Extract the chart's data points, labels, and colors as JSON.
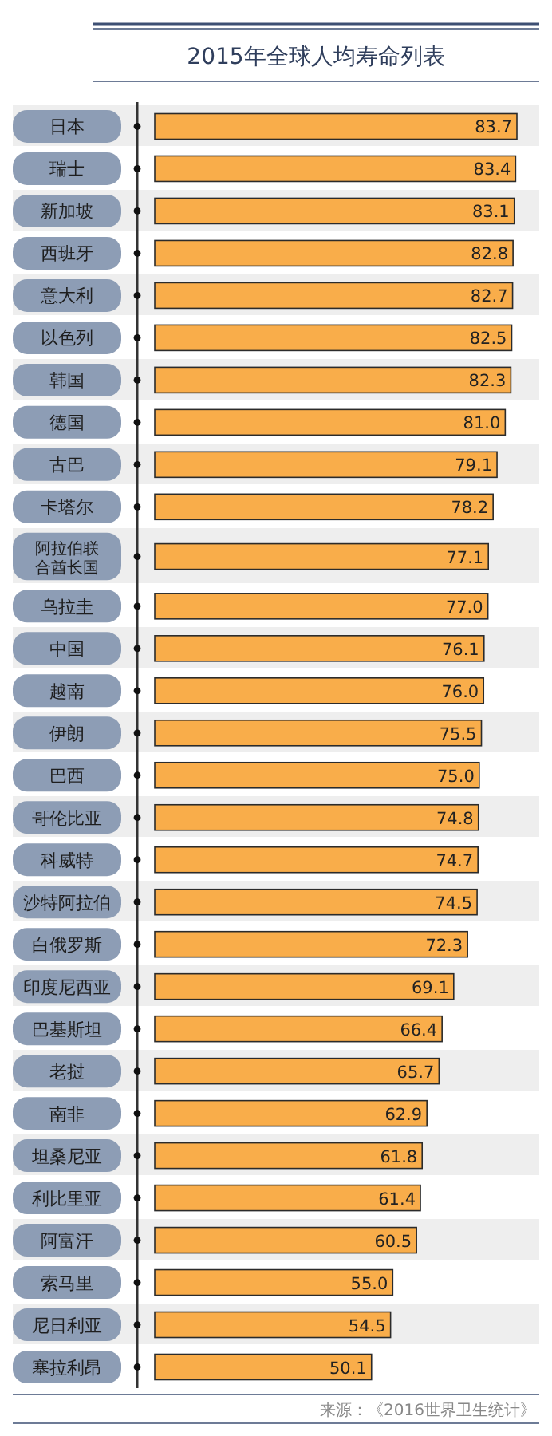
{
  "chart_data": {
    "type": "bar",
    "orientation": "horizontal",
    "title": "2015年全球人均寿命列表",
    "color": "#f9ad4a",
    "categories": [
      "日本",
      "瑞士",
      "新加坡",
      "西班牙",
      "意大利",
      "以色列",
      "韩国",
      "德国",
      "古巴",
      "卡塔尔",
      "阿拉伯联合酋长国",
      "乌拉圭",
      "中国",
      "越南",
      "伊朗",
      "巴西",
      "哥伦比亚",
      "科威特",
      "沙特阿拉伯",
      "白俄罗斯",
      "印度尼西亚",
      "巴基斯坦",
      "老挝",
      "南非",
      "坦桑尼亚",
      "利比里亚",
      "阿富汗",
      "索马里",
      "尼日利亚",
      "塞拉利昂"
    ],
    "values": [
      83.7,
      83.4,
      83.1,
      82.8,
      82.7,
      82.5,
      82.3,
      81.0,
      79.1,
      78.2,
      77.1,
      77.0,
      76.1,
      76.0,
      75.5,
      75.0,
      74.8,
      74.7,
      74.5,
      72.3,
      69.1,
      66.4,
      65.7,
      62.9,
      61.8,
      61.4,
      60.5,
      55.0,
      54.5,
      50.1
    ],
    "value_labels": [
      "83.7",
      "83.4",
      "83.1",
      "82.8",
      "82.7",
      "82.5",
      "82.3",
      "81.0",
      "79.1",
      "78.2",
      "77.1",
      "77.0",
      "76.1",
      "76.0",
      "75.5",
      "75.0",
      "74.8",
      "74.7",
      "74.5",
      "72.3",
      "69.1",
      "66.4",
      "65.7",
      "62.9",
      "61.8",
      "61.4",
      "60.5",
      "55.0",
      "54.5",
      "50.1"
    ],
    "annotations": [
      "来源：《2016世界卫生统计》"
    ]
  }
}
